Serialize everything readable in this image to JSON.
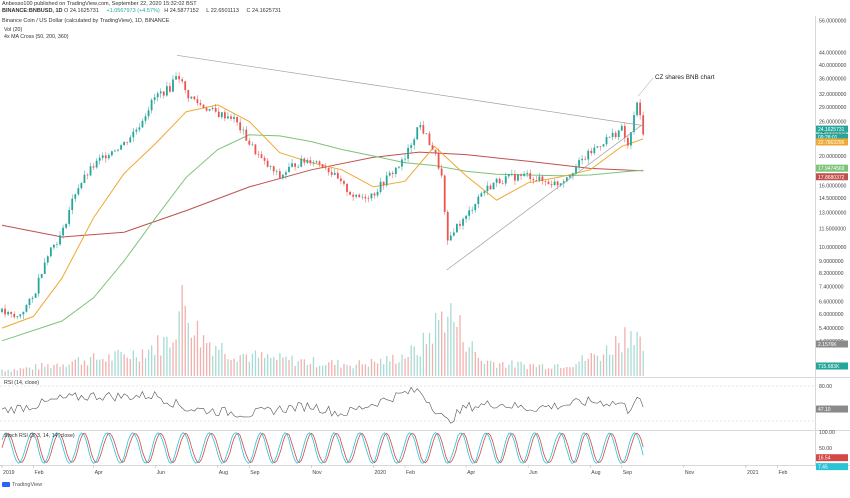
{
  "header": {
    "publisher_line": "Anbesso100 published on TradingView.com, September 22, 2020 15:32:02 BST",
    "title": "Binance Coin / US Dollar (calculated by TradingView), 1D, BINANCE",
    "symbol": "BINANCE:BNBUSD, 1D",
    "open": "24.1625731",
    "change": "+1.0567973 (+4.57%)",
    "high": "24.5877152",
    "low": "22.6501113",
    "close": "24.1625731"
  },
  "indicators": {
    "volume": "Vol (20)",
    "ma_cross": "4x MA Cross (50, 200, 360)",
    "rsi": "RSI (14, close)",
    "stoch": "Stoch RSI (3, 3, 14, 14, close)"
  },
  "annotation": "CZ shares BNB chart",
  "footer": {
    "brand": "TradingView"
  },
  "colors": {
    "candle_up": "#26a69a",
    "candle_down": "#ef5350",
    "ma50": "#f0a830",
    "ma200": "#7cc47a",
    "ma360": "#c0504d",
    "rsi_line": "#555555",
    "stoch_k": "#2bc4d6",
    "stoch_d": "#d34848",
    "trendline": "#9e9e9e"
  },
  "price_labels": [
    {
      "text": "24.1625731",
      "bg": "#26a69a",
      "fg": "#ffffff"
    },
    {
      "text": "09:28:01",
      "bg": "#26a69a",
      "fg": "#ffffff"
    },
    {
      "text": "22.7663296",
      "bg": "#f0a830",
      "fg": "#ffffff"
    },
    {
      "text": "17.9474569",
      "bg": "#7cc47a",
      "fg": "#ffffff"
    },
    {
      "text": "17.8680372",
      "bg": "#c0504d",
      "fg": "#ffffff"
    },
    {
      "text": "2.1576K",
      "bg": "#8a8a8a",
      "fg": "#ffffff"
    },
    {
      "text": "715.683K",
      "bg": "#26a69a",
      "fg": "#ffffff"
    },
    {
      "text": "47.10",
      "bg": "#8a8a8a",
      "fg": "#ffffff"
    },
    {
      "text": "16.54",
      "bg": "#d34848",
      "fg": "#ffffff"
    },
    {
      "text": "7.45",
      "bg": "#2bc4d6",
      "fg": "#ffffff"
    }
  ],
  "chart_data": [
    {
      "type": "line",
      "name": "price",
      "scale": "log",
      "y_ticks": [
        "56.0000000",
        "44.0000000",
        "40.0000000",
        "36.0000000",
        "32.0000000",
        "29.0000000",
        "26.0000000",
        "24.0000000",
        "22.0000000",
        "20.0000000",
        "17.0000000",
        "16.0000000",
        "14.5000000",
        "13.0000000",
        "11.5000000",
        "10.0000000",
        "9.0000000",
        "8.2000000",
        "7.4000000",
        "6.6000000",
        "6.0000000",
        "5.4000000",
        "4.9000000",
        "4.0000000"
      ],
      "x_tick_labels": [
        "2019",
        "Feb",
        "Apr",
        "Jun",
        "Aug",
        "Sep",
        "Nov",
        "2020",
        "Feb",
        "Apr",
        "Jun",
        "Aug",
        "Sep",
        "Nov",
        "2021",
        "Feb"
      ],
      "x_tick_dates": [
        "2019-01-01",
        "2019-02-01",
        "2019-04-01",
        "2019-06-01",
        "2019-08-01",
        "2019-09-01",
        "2019-11-01",
        "2020-01-01",
        "2020-02-01",
        "2020-04-01",
        "2020-06-01",
        "2020-08-01",
        "2020-09-01",
        "2020-11-01",
        "2021-01-01",
        "2021-02-01"
      ],
      "x_range": [
        "2019-01-01",
        "2021-03-01"
      ],
      "close": [
        [
          "2019-01-01",
          6.1
        ],
        [
          "2019-01-15",
          5.8
        ],
        [
          "2019-02-01",
          6.8
        ],
        [
          "2019-02-15",
          9.6
        ],
        [
          "2019-03-01",
          11.0
        ],
        [
          "2019-03-15",
          15.5
        ],
        [
          "2019-04-01",
          18.5
        ],
        [
          "2019-04-15",
          20.5
        ],
        [
          "2019-05-01",
          22.0
        ],
        [
          "2019-05-15",
          25.0
        ],
        [
          "2019-06-01",
          31.5
        ],
        [
          "2019-06-15",
          33.5
        ],
        [
          "2019-06-22",
          38.0
        ],
        [
          "2019-07-01",
          32.0
        ],
        [
          "2019-07-15",
          29.5
        ],
        [
          "2019-08-01",
          27.5
        ],
        [
          "2019-08-15",
          27.0
        ],
        [
          "2019-09-01",
          22.0
        ],
        [
          "2019-09-15",
          19.0
        ],
        [
          "2019-10-01",
          17.0
        ],
        [
          "2019-10-15",
          18.8
        ],
        [
          "2019-11-01",
          19.5
        ],
        [
          "2019-11-15",
          18.5
        ],
        [
          "2019-12-01",
          16.0
        ],
        [
          "2019-12-15",
          14.5
        ],
        [
          "2020-01-01",
          15.0
        ],
        [
          "2020-01-15",
          17.0
        ],
        [
          "2020-02-01",
          19.5
        ],
        [
          "2020-02-15",
          25.5
        ],
        [
          "2020-03-01",
          20.5
        ],
        [
          "2020-03-08",
          17.0
        ],
        [
          "2020-03-13",
          10.0
        ],
        [
          "2020-03-20",
          11.5
        ],
        [
          "2020-04-01",
          12.5
        ],
        [
          "2020-04-15",
          15.0
        ],
        [
          "2020-05-01",
          16.5
        ],
        [
          "2020-05-15",
          17.0
        ],
        [
          "2020-06-01",
          17.3
        ],
        [
          "2020-06-15",
          16.5
        ],
        [
          "2020-07-01",
          16.2
        ],
        [
          "2020-07-15",
          18.0
        ],
        [
          "2020-08-01",
          20.5
        ],
        [
          "2020-08-15",
          22.5
        ],
        [
          "2020-09-01",
          24.5
        ],
        [
          "2020-09-08",
          21.0
        ],
        [
          "2020-09-15",
          30.0
        ],
        [
          "2020-09-18",
          28.0
        ],
        [
          "2020-09-22",
          24.16
        ]
      ],
      "ma50": [
        [
          "2019-01-01",
          5.4
        ],
        [
          "2019-02-01",
          5.9
        ],
        [
          "2019-03-01",
          7.9
        ],
        [
          "2019-04-01",
          12.5
        ],
        [
          "2019-05-01",
          17.5
        ],
        [
          "2019-06-01",
          22.0
        ],
        [
          "2019-07-01",
          28.0
        ],
        [
          "2019-08-01",
          29.5
        ],
        [
          "2019-09-01",
          26.0
        ],
        [
          "2019-10-01",
          20.5
        ],
        [
          "2019-11-01",
          19.0
        ],
        [
          "2019-12-01",
          18.0
        ],
        [
          "2020-01-01",
          15.8
        ],
        [
          "2020-02-01",
          16.5
        ],
        [
          "2020-03-01",
          21.5
        ],
        [
          "2020-04-01",
          17.2
        ],
        [
          "2020-05-01",
          14.3
        ],
        [
          "2020-06-01",
          16.3
        ],
        [
          "2020-07-01",
          17.0
        ],
        [
          "2020-08-01",
          18.0
        ],
        [
          "2020-09-01",
          21.5
        ],
        [
          "2020-09-22",
          22.77
        ]
      ],
      "ma200": [
        [
          "2019-01-01",
          4.9
        ],
        [
          "2019-03-01",
          5.7
        ],
        [
          "2019-04-01",
          6.8
        ],
        [
          "2019-05-01",
          9.0
        ],
        [
          "2019-06-01",
          12.5
        ],
        [
          "2019-07-01",
          17.0
        ],
        [
          "2019-08-01",
          21.0
        ],
        [
          "2019-09-01",
          23.5
        ],
        [
          "2019-10-01",
          23.3
        ],
        [
          "2019-11-01",
          22.3
        ],
        [
          "2019-12-01",
          21.0
        ],
        [
          "2020-01-01",
          20.0
        ],
        [
          "2020-02-01",
          19.0
        ],
        [
          "2020-03-01",
          18.6
        ],
        [
          "2020-04-01",
          17.8
        ],
        [
          "2020-05-01",
          17.4
        ],
        [
          "2020-06-01",
          17.3
        ],
        [
          "2020-07-01",
          17.2
        ],
        [
          "2020-08-01",
          17.3
        ],
        [
          "2020-09-01",
          17.7
        ],
        [
          "2020-09-22",
          17.95
        ]
      ],
      "ma360": [
        [
          "2019-01-01",
          11.8
        ],
        [
          "2019-03-01",
          10.8
        ],
        [
          "2019-05-01",
          11.2
        ],
        [
          "2019-07-01",
          13.2
        ],
        [
          "2019-09-01",
          15.8
        ],
        [
          "2019-11-01",
          18.0
        ],
        [
          "2020-01-01",
          19.8
        ],
        [
          "2020-02-15",
          20.6
        ],
        [
          "2020-04-01",
          20.2
        ],
        [
          "2020-06-01",
          19.2
        ],
        [
          "2020-08-01",
          18.2
        ],
        [
          "2020-09-22",
          17.87
        ]
      ],
      "trendlines": [
        {
          "from": [
            "2019-06-22",
            43.0
          ],
          "to": [
            "2020-09-22",
            25.2
          ]
        },
        {
          "from": [
            "2020-03-13",
            8.4
          ],
          "to": [
            "2020-09-22",
            25.5
          ]
        }
      ],
      "last_price": 24.1625731
    },
    {
      "type": "bar",
      "name": "volume",
      "y_ticks": [],
      "values_k": [
        [
          "2019-01-15",
          250
        ],
        [
          "2019-02-15",
          400
        ],
        [
          "2019-03-15",
          600
        ],
        [
          "2019-04-15",
          700
        ],
        [
          "2019-05-15",
          900
        ],
        [
          "2019-06-15",
          1400
        ],
        [
          "2019-06-28",
          2900
        ],
        [
          "2019-07-15",
          1500
        ],
        [
          "2019-08-15",
          900
        ],
        [
          "2019-09-15",
          700
        ],
        [
          "2019-10-15",
          600
        ],
        [
          "2019-11-15",
          500
        ],
        [
          "2019-12-15",
          450
        ],
        [
          "2020-01-15",
          600
        ],
        [
          "2020-02-15",
          1000
        ],
        [
          "2020-03-13",
          2600
        ],
        [
          "2020-04-15",
          600
        ],
        [
          "2020-05-15",
          450
        ],
        [
          "2020-06-15",
          400
        ],
        [
          "2020-07-15",
          500
        ],
        [
          "2020-08-15",
          900
        ],
        [
          "2020-09-15",
          2000
        ],
        [
          "2020-09-22",
          715.683
        ]
      ],
      "avg_label": "2.1576K",
      "last": "715.683K"
    },
    {
      "type": "line",
      "name": "rsi",
      "y_ticks": [
        "80.00"
      ],
      "ylim": [
        20,
        90
      ],
      "values": [
        [
          "2019-01-01",
          45
        ],
        [
          "2019-02-01",
          52
        ],
        [
          "2019-03-01",
          62
        ],
        [
          "2019-04-01",
          66
        ],
        [
          "2019-05-01",
          65
        ],
        [
          "2019-06-01",
          67
        ],
        [
          "2019-07-01",
          48
        ],
        [
          "2019-08-01",
          44
        ],
        [
          "2019-09-01",
          40
        ],
        [
          "2019-10-01",
          47
        ],
        [
          "2019-11-01",
          52
        ],
        [
          "2019-12-01",
          40
        ],
        [
          "2020-01-01",
          55
        ],
        [
          "2020-02-01",
          70
        ],
        [
          "2020-02-15",
          74
        ],
        [
          "2020-03-13",
          28
        ],
        [
          "2020-04-01",
          50
        ],
        [
          "2020-05-01",
          55
        ],
        [
          "2020-06-01",
          48
        ],
        [
          "2020-07-01",
          52
        ],
        [
          "2020-08-01",
          58
        ],
        [
          "2020-09-01",
          55
        ],
        [
          "2020-09-08",
          44
        ],
        [
          "2020-09-15",
          68
        ],
        [
          "2020-09-22",
          47.1
        ]
      ],
      "last": "47.10"
    },
    {
      "type": "line",
      "name": "stoch_rsi",
      "y_ticks": [
        "100.00",
        "50.00"
      ],
      "ylim": [
        0,
        100
      ],
      "series": [
        {
          "name": "K",
          "last": "7.45"
        },
        {
          "name": "D",
          "last": "16.54"
        }
      ]
    }
  ]
}
